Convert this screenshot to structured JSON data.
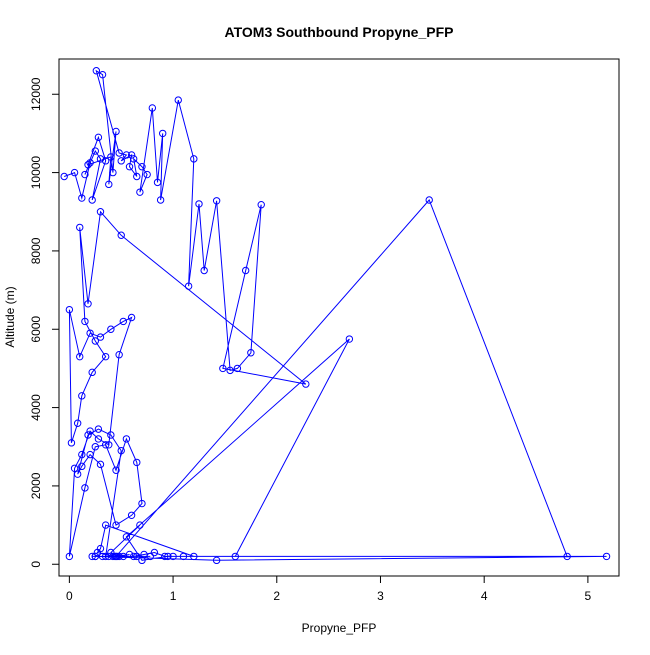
{
  "chart_data": {
    "type": "line",
    "title": "ATOM3 Southbound Propyne_PFP",
    "xlabel": "Propyne_PFP",
    "ylabel": "Altitude (m)",
    "xlim": [
      -0.1,
      5.3
    ],
    "ylim": [
      -300,
      12900
    ],
    "xticks": [
      0,
      1,
      2,
      3,
      4,
      5
    ],
    "yticks": [
      0,
      2000,
      4000,
      6000,
      8000,
      10000,
      12000
    ],
    "grid": false,
    "legend": "none",
    "series_color": "#0000ff",
    "marker": "open-circle",
    "series": [
      {
        "x": [
          -0.05,
          0.05,
          0.12,
          0.2,
          0.15,
          0.25,
          0.3,
          0.22,
          0.35,
          0.28,
          0.18,
          0.4,
          0.38,
          0.45,
          0.42,
          0.32,
          0.26,
          0.48,
          0.55,
          0.5,
          0.6,
          0.58,
          0.65,
          0.62,
          0.7,
          0.75,
          0.68,
          0.8,
          0.85,
          0.9,
          0.88,
          1.05,
          1.2,
          1.15,
          1.25,
          1.3,
          1.42,
          1.55,
          1.62,
          1.75,
          1.85,
          1.7,
          1.48,
          2.28,
          0.5,
          0.3,
          0.18,
          0.1,
          0.15,
          0.25,
          0.35,
          0.22,
          0.12,
          0.08,
          0.02,
          0.0,
          0.1,
          0.2,
          0.3,
          0.4,
          0.52,
          0.6,
          0.48,
          0.38,
          0.28,
          0.2,
          0.12,
          0.05,
          0.0,
          0.15,
          0.25,
          0.35,
          0.45,
          0.55,
          0.65,
          0.7,
          0.6,
          0.45,
          0.3,
          0.2,
          0.12,
          0.08,
          0.18,
          0.28,
          0.4,
          0.5,
          0.35,
          0.25,
          0.45,
          3.47,
          4.8,
          0.95,
          0.7,
          0.55,
          2.7,
          1.6,
          1.0,
          5.18,
          1.42,
          0.25,
          0.65,
          0.78,
          0.52,
          0.38,
          0.48,
          0.58,
          0.44,
          0.32,
          0.22,
          0.62,
          0.72,
          0.82,
          0.92,
          1.1,
          1.2,
          0.35,
          0.3,
          0.27,
          0.42,
          0.46,
          0.4,
          0.68
        ],
        "y": [
          9900,
          10000,
          9350,
          10250,
          9950,
          10550,
          10350,
          9300,
          10300,
          10900,
          10200,
          10400,
          9700,
          11050,
          10000,
          12500,
          12600,
          10500,
          10450,
          10300,
          10450,
          10150,
          9900,
          10350,
          10150,
          9950,
          9500,
          11650,
          9750,
          11000,
          9300,
          11850,
          10350,
          7100,
          9200,
          7500,
          9280,
          4950,
          5000,
          5400,
          9180,
          7500,
          5000,
          4600,
          8400,
          9000,
          6650,
          8600,
          6200,
          5700,
          5300,
          4900,
          4300,
          3600,
          3100,
          6500,
          5300,
          5900,
          5800,
          6000,
          6200,
          6300,
          5350,
          3050,
          3200,
          3400,
          2800,
          2450,
          200,
          1950,
          3000,
          3050,
          2400,
          3200,
          2600,
          1550,
          1250,
          1000,
          2550,
          2800,
          2500,
          2300,
          3300,
          3450,
          3300,
          2900,
          200,
          200,
          200,
          9300,
          200,
          200,
          100,
          700,
          5750,
          200,
          200,
          200,
          100,
          200,
          200,
          200,
          200,
          200,
          200,
          250,
          200,
          200,
          200,
          200,
          250,
          300,
          200,
          200,
          200,
          1000,
          400,
          300,
          200,
          200,
          300,
          1000
        ]
      }
    ]
  }
}
